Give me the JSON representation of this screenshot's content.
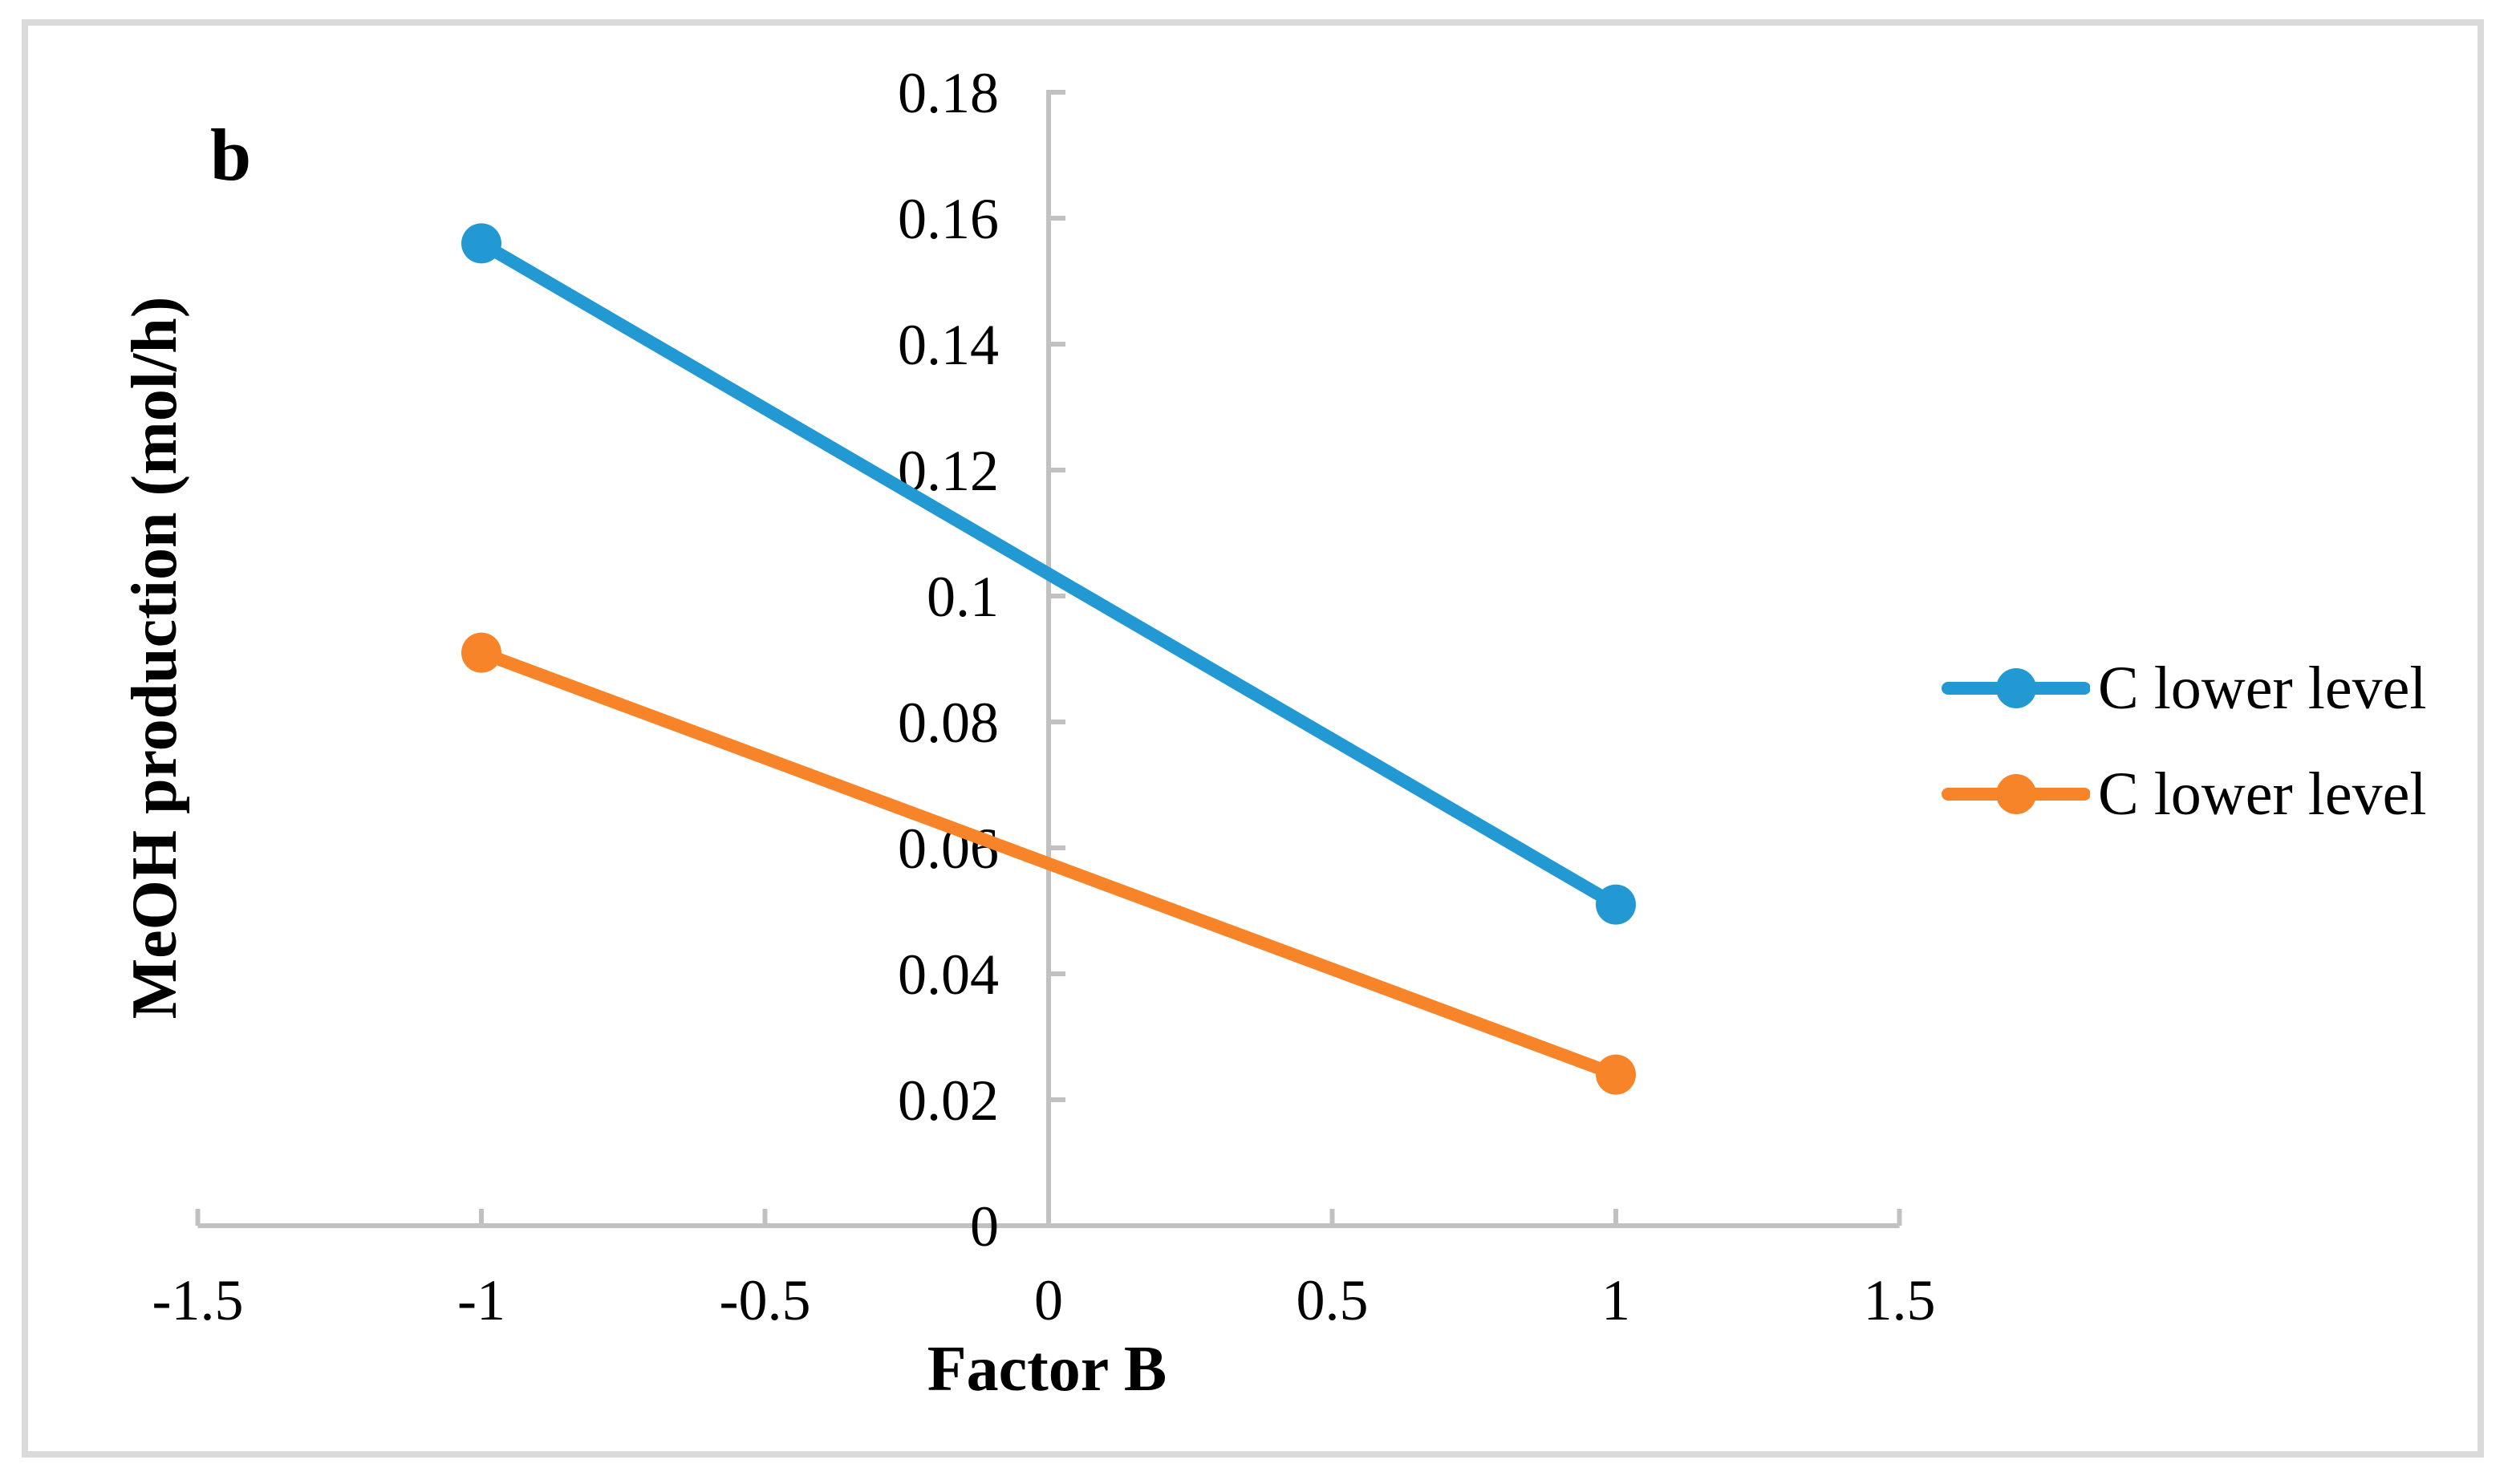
{
  "figure": {
    "panel_label": "b",
    "background_color": "#FFFFFF",
    "border_color": "#DADADA"
  },
  "chart_data": {
    "type": "line",
    "title": "",
    "xlabel": "Factor B",
    "ylabel": "MeOH production (mol/h)",
    "x": [
      -1,
      1
    ],
    "series": [
      {
        "name": "C lower level",
        "color": "#2299D2",
        "values": [
          0.156,
          0.051
        ]
      },
      {
        "name": "C lower level",
        "color": "#F8842A",
        "values": [
          0.091,
          0.024
        ]
      }
    ],
    "xlim": [
      -1.5,
      1.5
    ],
    "ylim": [
      0,
      0.18
    ],
    "x_ticks": [
      -1.5,
      -1,
      -0.5,
      0,
      0.5,
      1,
      1.5
    ],
    "x_tick_labels": [
      "-1.5",
      "-1",
      "-0.5",
      "0",
      "0.5",
      "1",
      "1.5"
    ],
    "y_ticks": [
      0,
      0.02,
      0.04,
      0.06,
      0.08,
      0.1,
      0.12,
      0.14,
      0.16,
      0.18
    ],
    "y_tick_labels": [
      "0",
      "0.02",
      "0.04",
      "0.06",
      "0.08",
      "0.1",
      "0.12",
      "0.14",
      "0.16",
      "0.18"
    ],
    "grid": false,
    "legend_position": "right",
    "marker": "circle",
    "axis_color": "#C1C1C1"
  }
}
